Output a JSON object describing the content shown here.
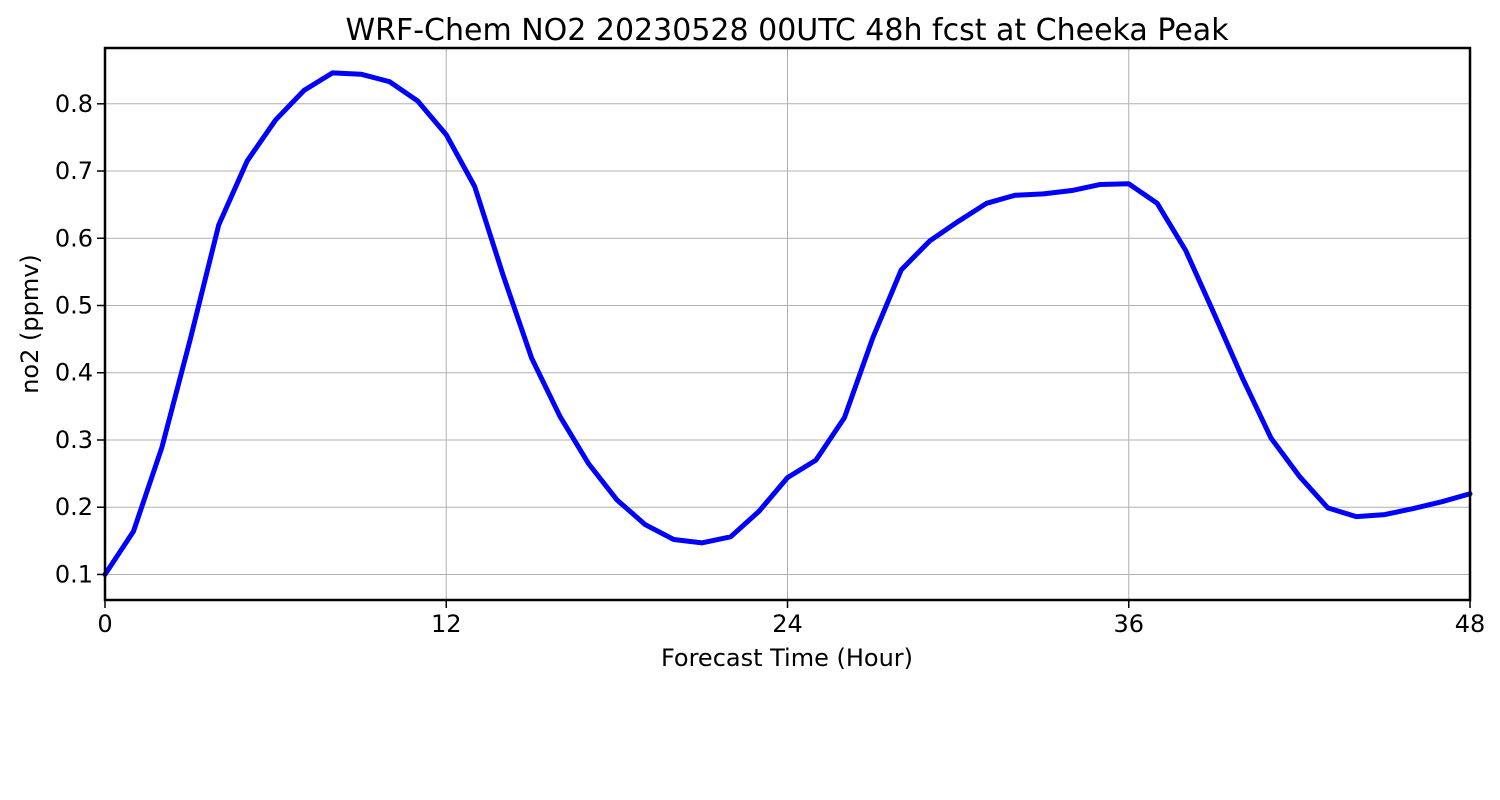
{
  "chart_data": {
    "type": "line",
    "title": "WRF-Chem NO2  20230528 00UTC 48h fcst at Cheeka Peak",
    "xlabel": "Forecast Time (Hour)",
    "ylabel": "no2  (ppmv)",
    "xlim": [
      0,
      48
    ],
    "ylim": [
      0.062,
      0.883
    ],
    "xticks": [
      0,
      12,
      24,
      36,
      48
    ],
    "yticks": [
      0.1,
      0.2,
      0.3,
      0.4,
      0.5,
      0.6,
      0.7,
      0.8
    ],
    "xtick_labels": [
      "0",
      "12",
      "24",
      "36",
      "48"
    ],
    "ytick_labels": [
      "0.1",
      "0.2",
      "0.3",
      "0.4",
      "0.5",
      "0.6",
      "0.7",
      "0.8"
    ],
    "grid": true,
    "line_color": "#0000ff",
    "grid_color": "#b0b0b0",
    "series": [
      {
        "x": [
          0,
          1,
          2,
          3,
          4,
          5,
          6,
          7,
          8,
          9,
          10,
          11,
          12,
          13,
          14,
          15,
          16,
          17,
          18,
          19,
          20,
          21,
          22,
          23,
          24,
          25,
          26,
          27,
          28,
          29,
          30,
          31,
          32,
          33,
          34,
          35,
          36,
          37,
          38,
          39,
          40,
          41,
          42,
          43,
          44,
          45,
          46,
          47,
          48
        ],
        "values": [
          0.1,
          0.164,
          0.289,
          0.45,
          0.62,
          0.715,
          0.776,
          0.82,
          0.846,
          0.844,
          0.833,
          0.804,
          0.754,
          0.677,
          0.545,
          0.422,
          0.335,
          0.265,
          0.211,
          0.174,
          0.152,
          0.147,
          0.156,
          0.194,
          0.244,
          0.27,
          0.333,
          0.452,
          0.553,
          0.596,
          0.625,
          0.652,
          0.664,
          0.666,
          0.671,
          0.68,
          0.681,
          0.652,
          0.582,
          0.488,
          0.392,
          0.303,
          0.246,
          0.199,
          0.186,
          0.189,
          0.198,
          0.208,
          0.22
        ]
      }
    ]
  }
}
